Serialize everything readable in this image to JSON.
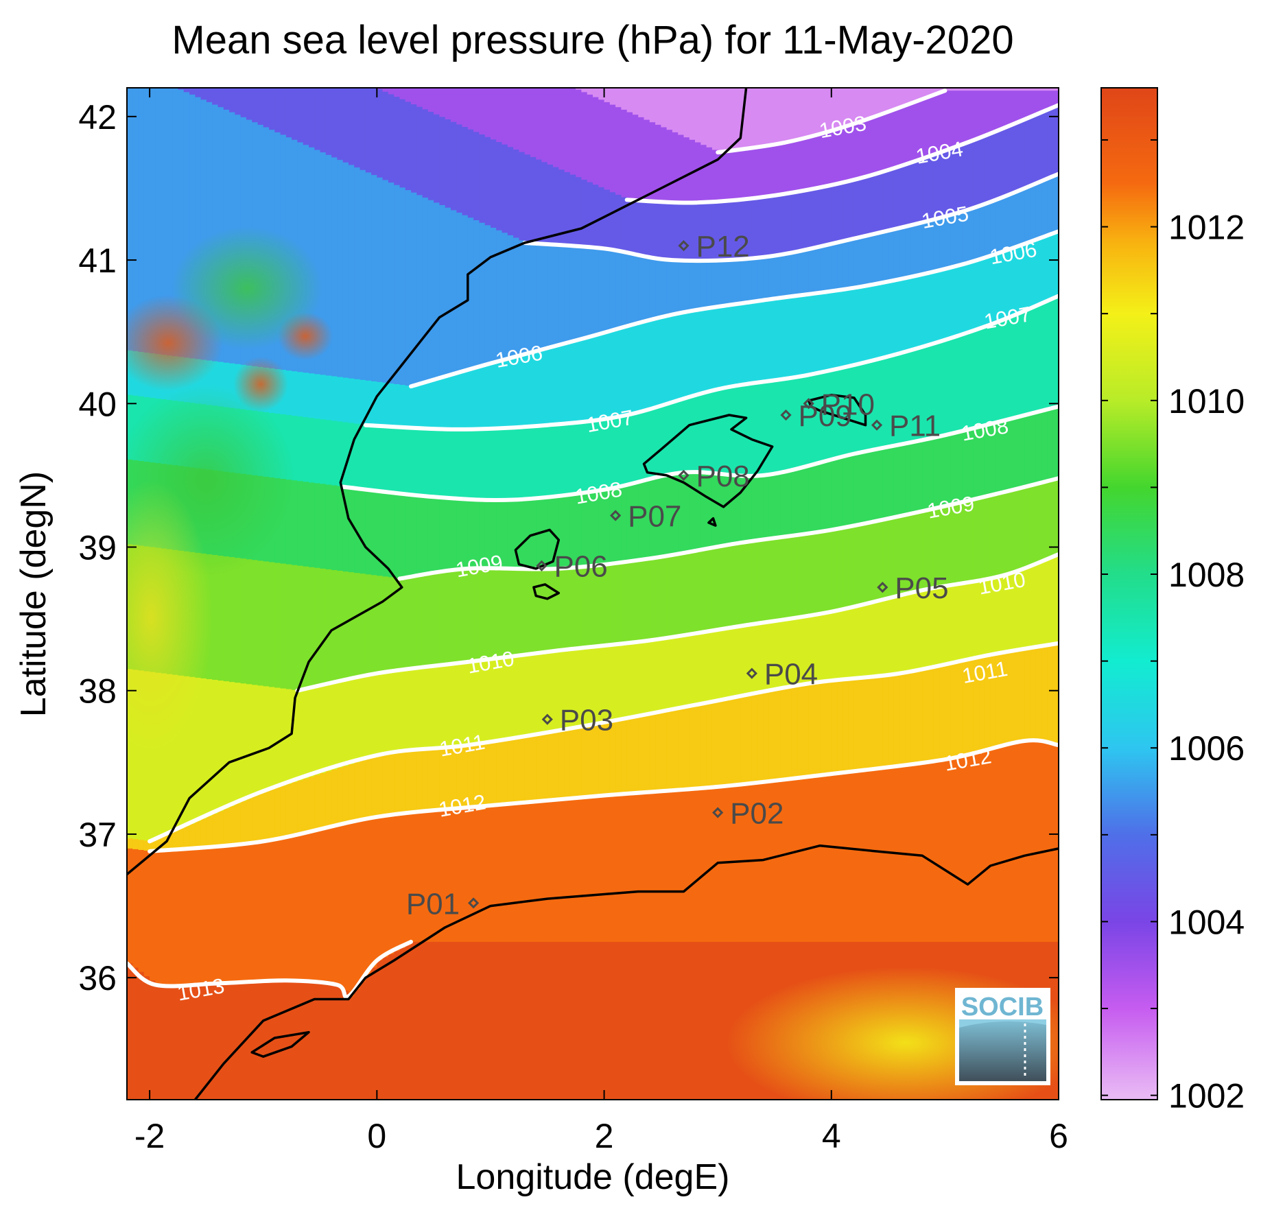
{
  "title": "Mean sea level pressure (hPa) for 11-May-2020",
  "xlabel": "Longitude (degE)",
  "ylabel": "Latitude (degN)",
  "x_range": [
    -2.2,
    6.0
  ],
  "y_range": [
    35.15,
    42.2
  ],
  "x_ticks": [
    -2,
    0,
    2,
    4,
    6
  ],
  "y_ticks": [
    36,
    37,
    38,
    39,
    40,
    41,
    42
  ],
  "colorbar": {
    "range": [
      1001.95,
      1013.6
    ],
    "ticks": [
      1002,
      1004,
      1006,
      1008,
      1010,
      1012
    ],
    "stops": [
      {
        "v": 1002.0,
        "c": "#e8b8f4"
      },
      {
        "v": 1003.0,
        "c": "#c65cf0"
      },
      {
        "v": 1004.0,
        "c": "#7a45e6"
      },
      {
        "v": 1005.0,
        "c": "#4f6fe8"
      },
      {
        "v": 1006.0,
        "c": "#2ec6f0"
      },
      {
        "v": 1007.0,
        "c": "#12ecd0"
      },
      {
        "v": 1008.0,
        "c": "#22dd8a"
      },
      {
        "v": 1009.0,
        "c": "#44d62e"
      },
      {
        "v": 1010.0,
        "c": "#b8ec28"
      },
      {
        "v": 1011.0,
        "c": "#f4f018"
      },
      {
        "v": 1011.8,
        "c": "#f8b410"
      },
      {
        "v": 1012.5,
        "c": "#f56a10"
      },
      {
        "v": 1013.6,
        "c": "#e04618"
      }
    ]
  },
  "chart_data": {
    "type": "contour",
    "title": "Mean sea level pressure (hPa) for 11-May-2020",
    "xlabel": "Longitude (degE)",
    "ylabel": "Latitude (degN)",
    "units": "hPa",
    "xlim": [
      -2.2,
      6.0
    ],
    "ylim": [
      35.15,
      42.2
    ],
    "contours": [
      {
        "level": 1003,
        "label": "1003",
        "points": [
          [
            3.0,
            41.75
          ],
          [
            3.6,
            41.82
          ],
          [
            4.2,
            41.95
          ],
          [
            5.0,
            42.18
          ]
        ],
        "label_at": [
          4.1,
          41.93
        ]
      },
      {
        "level": 1004,
        "label": "1004",
        "points": [
          [
            2.2,
            41.42
          ],
          [
            2.8,
            41.4
          ],
          [
            3.5,
            41.45
          ],
          [
            4.3,
            41.58
          ],
          [
            5.2,
            41.82
          ],
          [
            6.0,
            42.08
          ]
        ],
        "label_at": [
          4.95,
          41.75
        ]
      },
      {
        "level": 1005,
        "label": "1005",
        "points": [
          [
            1.3,
            41.12
          ],
          [
            2.0,
            41.08
          ],
          [
            2.6,
            41.0
          ],
          [
            3.4,
            41.02
          ],
          [
            4.2,
            41.15
          ],
          [
            5.2,
            41.35
          ],
          [
            6.0,
            41.6
          ]
        ],
        "label_at": [
          5.0,
          41.3
        ]
      },
      {
        "level": 1006,
        "label": "1006",
        "points": [
          [
            0.3,
            40.12
          ],
          [
            1.0,
            40.28
          ],
          [
            1.8,
            40.45
          ],
          [
            2.6,
            40.62
          ],
          [
            3.4,
            40.72
          ],
          [
            4.3,
            40.82
          ],
          [
            5.2,
            40.98
          ],
          [
            6.0,
            41.2
          ]
        ],
        "label_at": [
          5.6,
          41.05
        ],
        "label2": "1006",
        "label2_at": [
          1.25,
          40.33
        ]
      },
      {
        "level": 1007,
        "label": "1007",
        "points": [
          [
            -0.1,
            39.85
          ],
          [
            0.7,
            39.82
          ],
          [
            1.5,
            39.85
          ],
          [
            2.2,
            39.92
          ],
          [
            3.0,
            40.1
          ],
          [
            3.8,
            40.2
          ],
          [
            4.6,
            40.35
          ],
          [
            5.4,
            40.55
          ],
          [
            6.0,
            40.75
          ]
        ],
        "label_at": [
          2.05,
          39.88
        ],
        "label2": "1007",
        "label2_at": [
          5.55,
          40.6
        ]
      },
      {
        "level": 1008,
        "label": "1008",
        "points": [
          [
            -0.3,
            39.42
          ],
          [
            0.5,
            39.35
          ],
          [
            1.2,
            39.33
          ],
          [
            2.0,
            39.4
          ],
          [
            2.7,
            39.52
          ],
          [
            3.4,
            39.5
          ],
          [
            4.2,
            39.65
          ],
          [
            5.0,
            39.78
          ],
          [
            6.0,
            39.98
          ]
        ],
        "label_at": [
          1.95,
          39.38
        ],
        "label2": "1008",
        "label2_at": [
          5.35,
          39.82
        ]
      },
      {
        "level": 1009,
        "label": "1009",
        "points": [
          [
            0.2,
            38.78
          ],
          [
            0.8,
            38.85
          ],
          [
            1.6,
            38.85
          ],
          [
            2.4,
            38.92
          ],
          [
            3.2,
            39.03
          ],
          [
            4.0,
            39.12
          ],
          [
            4.8,
            39.25
          ],
          [
            5.5,
            39.38
          ],
          [
            6.0,
            39.48
          ]
        ],
        "label_at": [
          0.9,
          38.87
        ],
        "label2": "1009",
        "label2_at": [
          5.05,
          39.28
        ]
      },
      {
        "level": 1010,
        "label": "1010",
        "points": [
          [
            -0.7,
            38.0
          ],
          [
            0.0,
            38.12
          ],
          [
            0.8,
            38.2
          ],
          [
            1.6,
            38.28
          ],
          [
            2.4,
            38.35
          ],
          [
            3.2,
            38.45
          ],
          [
            4.0,
            38.55
          ],
          [
            4.8,
            38.7
          ],
          [
            5.5,
            38.8
          ],
          [
            6.0,
            38.95
          ]
        ],
        "label_at": [
          1.0,
          38.2
        ],
        "label2": "1010",
        "label2_at": [
          5.5,
          38.75
        ]
      },
      {
        "level": 1011,
        "label": "1011",
        "points": [
          [
            -2.0,
            36.95
          ],
          [
            -1.0,
            37.3
          ],
          [
            0.0,
            37.55
          ],
          [
            0.8,
            37.62
          ],
          [
            1.8,
            37.75
          ],
          [
            2.8,
            37.9
          ],
          [
            3.8,
            38.05
          ],
          [
            4.6,
            38.12
          ],
          [
            5.4,
            38.25
          ],
          [
            6.0,
            38.33
          ]
        ],
        "label_at": [
          0.75,
          37.62
        ],
        "label2": "1011",
        "label2_at": [
          5.35,
          38.13
        ]
      },
      {
        "level": 1012,
        "label": "1012",
        "points": [
          [
            -2.0,
            36.88
          ],
          [
            -1.0,
            36.95
          ],
          [
            0.0,
            37.12
          ],
          [
            1.0,
            37.2
          ],
          [
            2.0,
            37.27
          ],
          [
            3.0,
            37.33
          ],
          [
            4.0,
            37.42
          ],
          [
            5.0,
            37.52
          ],
          [
            5.7,
            37.65
          ],
          [
            6.0,
            37.62
          ]
        ],
        "label_at": [
          0.75,
          37.2
        ],
        "label2": "1012",
        "label2_at": [
          5.2,
          37.52
        ]
      },
      {
        "level": 1013,
        "label": "1013",
        "points": [
          [
            -2.2,
            36.1
          ],
          [
            -1.95,
            35.95
          ],
          [
            -1.4,
            35.96
          ],
          [
            -0.8,
            35.98
          ],
          [
            -0.35,
            35.95
          ],
          [
            -0.25,
            35.87
          ],
          [
            0.0,
            36.12
          ],
          [
            0.3,
            36.25
          ]
        ],
        "label_at": [
          -1.55,
          35.92
        ]
      }
    ],
    "stations": [
      {
        "label": "P01",
        "lon": 0.85,
        "lat": 36.52
      },
      {
        "label": "P02",
        "lon": 3.0,
        "lat": 37.15
      },
      {
        "label": "P03",
        "lon": 1.5,
        "lat": 37.8
      },
      {
        "label": "P04",
        "lon": 3.3,
        "lat": 38.12
      },
      {
        "label": "P05",
        "lon": 4.45,
        "lat": 38.72
      },
      {
        "label": "P06",
        "lon": 1.45,
        "lat": 38.87
      },
      {
        "label": "P07",
        "lon": 2.1,
        "lat": 39.22
      },
      {
        "label": "P08",
        "lon": 2.7,
        "lat": 39.5
      },
      {
        "label": "P09",
        "lon": 3.6,
        "lat": 39.92
      },
      {
        "label": "P10",
        "lon": 3.8,
        "lat": 40.0
      },
      {
        "label": "P11",
        "lon": 4.4,
        "lat": 39.85
      },
      {
        "label": "P12",
        "lon": 2.7,
        "lat": 41.1
      }
    ],
    "coastline": {
      "iberia": [
        [
          3.25,
          42.2
        ],
        [
          3.2,
          41.85
        ],
        [
          3.0,
          41.7
        ],
        [
          2.5,
          41.5
        ],
        [
          2.2,
          41.38
        ],
        [
          1.8,
          41.22
        ],
        [
          1.3,
          41.12
        ],
        [
          1.0,
          41.02
        ],
        [
          0.8,
          40.9
        ],
        [
          0.8,
          40.72
        ],
        [
          0.55,
          40.6
        ],
        [
          0.4,
          40.45
        ],
        [
          0.2,
          40.25
        ],
        [
          0.0,
          40.05
        ],
        [
          -0.1,
          39.9
        ],
        [
          -0.2,
          39.75
        ],
        [
          -0.32,
          39.45
        ],
        [
          -0.25,
          39.2
        ],
        [
          -0.1,
          39.0
        ],
        [
          0.1,
          38.85
        ],
        [
          0.22,
          38.72
        ],
        [
          0.05,
          38.62
        ],
        [
          -0.4,
          38.42
        ],
        [
          -0.6,
          38.2
        ],
        [
          -0.72,
          37.95
        ],
        [
          -0.75,
          37.7
        ],
        [
          -0.95,
          37.6
        ],
        [
          -1.3,
          37.5
        ],
        [
          -1.65,
          37.25
        ],
        [
          -1.85,
          36.95
        ],
        [
          -2.2,
          36.72
        ]
      ],
      "mallorca": [
        [
          2.35,
          39.58
        ],
        [
          2.5,
          39.68
        ],
        [
          2.75,
          39.85
        ],
        [
          3.1,
          39.92
        ],
        [
          3.25,
          39.9
        ],
        [
          3.12,
          39.82
        ],
        [
          3.3,
          39.75
        ],
        [
          3.48,
          39.7
        ],
        [
          3.35,
          39.53
        ],
        [
          3.2,
          39.38
        ],
        [
          3.05,
          39.28
        ],
        [
          2.9,
          39.35
        ],
        [
          2.7,
          39.45
        ],
        [
          2.55,
          39.5
        ],
        [
          2.38,
          39.52
        ]
      ],
      "menorca": [
        [
          3.8,
          40.02
        ],
        [
          4.0,
          40.06
        ],
        [
          4.2,
          40.04
        ],
        [
          4.3,
          39.92
        ],
        [
          4.3,
          39.85
        ],
        [
          4.1,
          39.9
        ],
        [
          3.9,
          39.95
        ],
        [
          3.82,
          39.98
        ]
      ],
      "ibiza": [
        [
          1.22,
          38.98
        ],
        [
          1.35,
          39.08
        ],
        [
          1.52,
          39.12
        ],
        [
          1.6,
          39.05
        ],
        [
          1.55,
          38.9
        ],
        [
          1.4,
          38.85
        ],
        [
          1.25,
          38.88
        ]
      ],
      "formentera": [
        [
          1.38,
          38.72
        ],
        [
          1.48,
          38.74
        ],
        [
          1.6,
          38.68
        ],
        [
          1.5,
          38.64
        ],
        [
          1.4,
          38.66
        ]
      ],
      "cabrera": [
        [
          2.92,
          39.17
        ],
        [
          2.96,
          39.2
        ],
        [
          2.98,
          39.15
        ]
      ],
      "africa": [
        [
          6.0,
          36.9
        ],
        [
          5.7,
          36.85
        ],
        [
          5.4,
          36.78
        ],
        [
          5.2,
          36.65
        ],
        [
          4.8,
          36.85
        ],
        [
          4.4,
          36.88
        ],
        [
          3.9,
          36.92
        ],
        [
          3.4,
          36.82
        ],
        [
          3.0,
          36.8
        ],
        [
          2.7,
          36.6
        ],
        [
          2.3,
          36.6
        ],
        [
          1.5,
          36.55
        ],
        [
          1.0,
          36.5
        ],
        [
          0.6,
          36.35
        ],
        [
          0.15,
          36.12
        ],
        [
          -0.1,
          36.0
        ],
        [
          -0.25,
          35.85
        ],
        [
          -0.55,
          35.85
        ],
        [
          -1.0,
          35.7
        ],
        [
          -1.35,
          35.4
        ],
        [
          -1.6,
          35.15
        ]
      ],
      "alboran": [
        [
          -1.1,
          35.48
        ],
        [
          -0.9,
          35.58
        ],
        [
          -0.6,
          35.62
        ],
        [
          -0.75,
          35.52
        ],
        [
          -1.0,
          35.45
        ]
      ]
    },
    "colorbar_ticks": [
      1002,
      1004,
      1006,
      1008,
      1010,
      1012
    ]
  },
  "logo": {
    "text": "SOCIB"
  }
}
